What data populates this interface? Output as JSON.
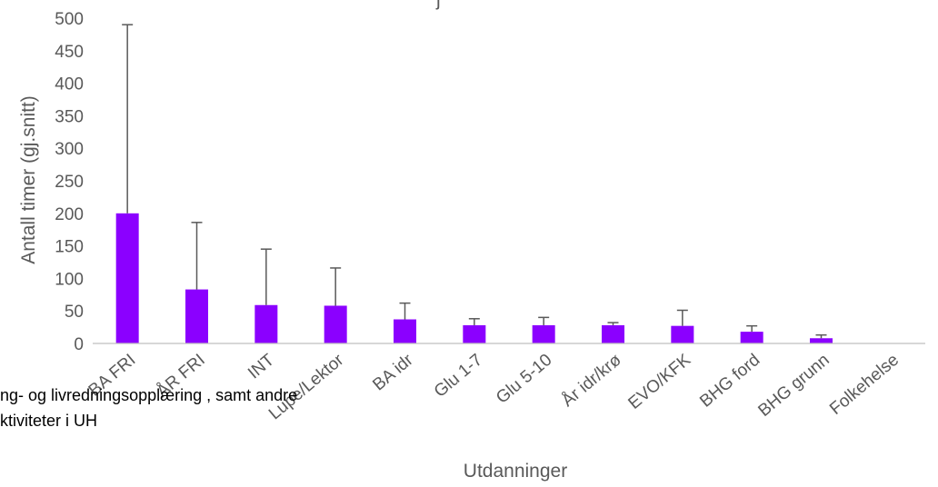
{
  "chart_data": {
    "type": "bar",
    "title": "",
    "xlabel": "Utdanninger",
    "ylabel": "Antall timer (gj.snitt)",
    "ylim": [
      0,
      500
    ],
    "yticks": [
      0,
      50,
      100,
      150,
      200,
      250,
      300,
      350,
      400,
      450,
      500
    ],
    "categories": [
      "BA FRI",
      "ÅR FRI",
      "INT",
      "Lupe/Lektor",
      "BA idr",
      "Glu 1-7",
      "Glu 5-10",
      "År idr/krø",
      "EVO/KFK",
      "BHG ford",
      "BHG grunn",
      "Folkehelse"
    ],
    "values": [
      200,
      83,
      59,
      58,
      37,
      28,
      28,
      28,
      27,
      18,
      8,
      0
    ],
    "error_upper": [
      290,
      103,
      86,
      58,
      25,
      10,
      12,
      4,
      24,
      9,
      5,
      0
    ],
    "grid": false,
    "colors": {
      "bar": "#8B00FF",
      "error_bar": "#595959",
      "axis": "#bfbfbf",
      "text": "#595959"
    }
  },
  "caption": {
    "line1": "ng- og livredningsopplæring , samt  andre",
    "line2": "ktiviteter i UH"
  }
}
